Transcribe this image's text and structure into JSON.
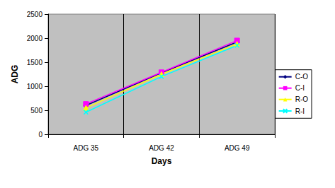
{
  "chart_data": {
    "type": "line",
    "x_label": "Days",
    "y_label": "ADG",
    "categories": [
      "ADG 35",
      "ADG 42",
      "ADG 49"
    ],
    "series": [
      {
        "name": "C-O",
        "color": "#000080",
        "marker": "diamond",
        "values": [
          600,
          1280,
          1920
        ]
      },
      {
        "name": "C-I",
        "color": "#ff00ff",
        "marker": "square",
        "values": [
          630,
          1290,
          1950
        ]
      },
      {
        "name": "R-O",
        "color": "#ffff00",
        "marker": "triangle",
        "values": [
          550,
          1250,
          1880
        ]
      },
      {
        "name": "R-I",
        "color": "#00ffff",
        "marker": "x",
        "values": [
          460,
          1200,
          1850
        ]
      }
    ],
    "ylim": [
      0,
      2500
    ],
    "yticks": [
      0,
      500,
      1000,
      1500,
      2000,
      2500
    ],
    "grid": true,
    "legend": "right"
  }
}
